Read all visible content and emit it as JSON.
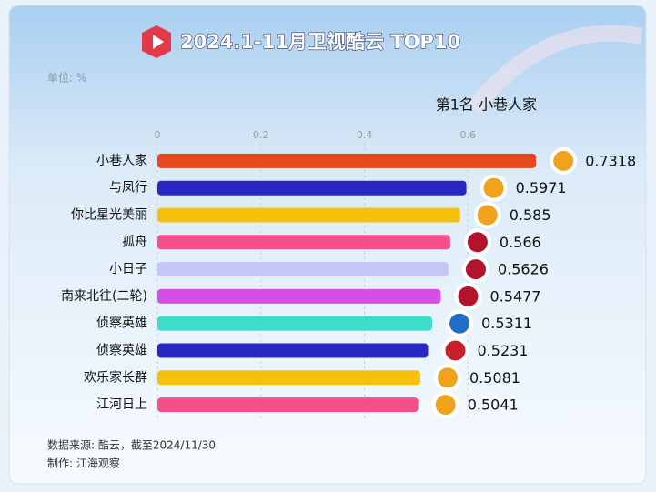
{
  "chart_data": {
    "type": "bar",
    "orientation": "horizontal",
    "title": "2024.1-11月卫视酷云 TOP10",
    "unit_label": "单位: %",
    "annotation": "第1名 小巷人家",
    "categories": [
      "小巷人家",
      "与凤行",
      "你比星光美丽",
      "孤舟",
      "小日子",
      "南来北往(二轮)",
      "侦察英雄",
      "侦察英雄",
      "欢乐家长群",
      "江河日上"
    ],
    "values": [
      0.7318,
      0.5971,
      0.585,
      0.566,
      0.5626,
      0.5477,
      0.5311,
      0.5231,
      0.5081,
      0.5041
    ],
    "colors": [
      "#e64a1c",
      "#2a26c4",
      "#f5c10a",
      "#f5508a",
      "#c5c8f7",
      "#d54ee6",
      "#3fdcc9",
      "#2a26c4",
      "#f5c10a",
      "#f5508a"
    ],
    "xlim": [
      0,
      0.8
    ],
    "xticks": [
      0,
      0.2,
      0.4,
      0.6
    ],
    "grid": true,
    "source": "数据来源: 酷云，截至2024/11/30",
    "credit": "制作: 江海观察"
  }
}
